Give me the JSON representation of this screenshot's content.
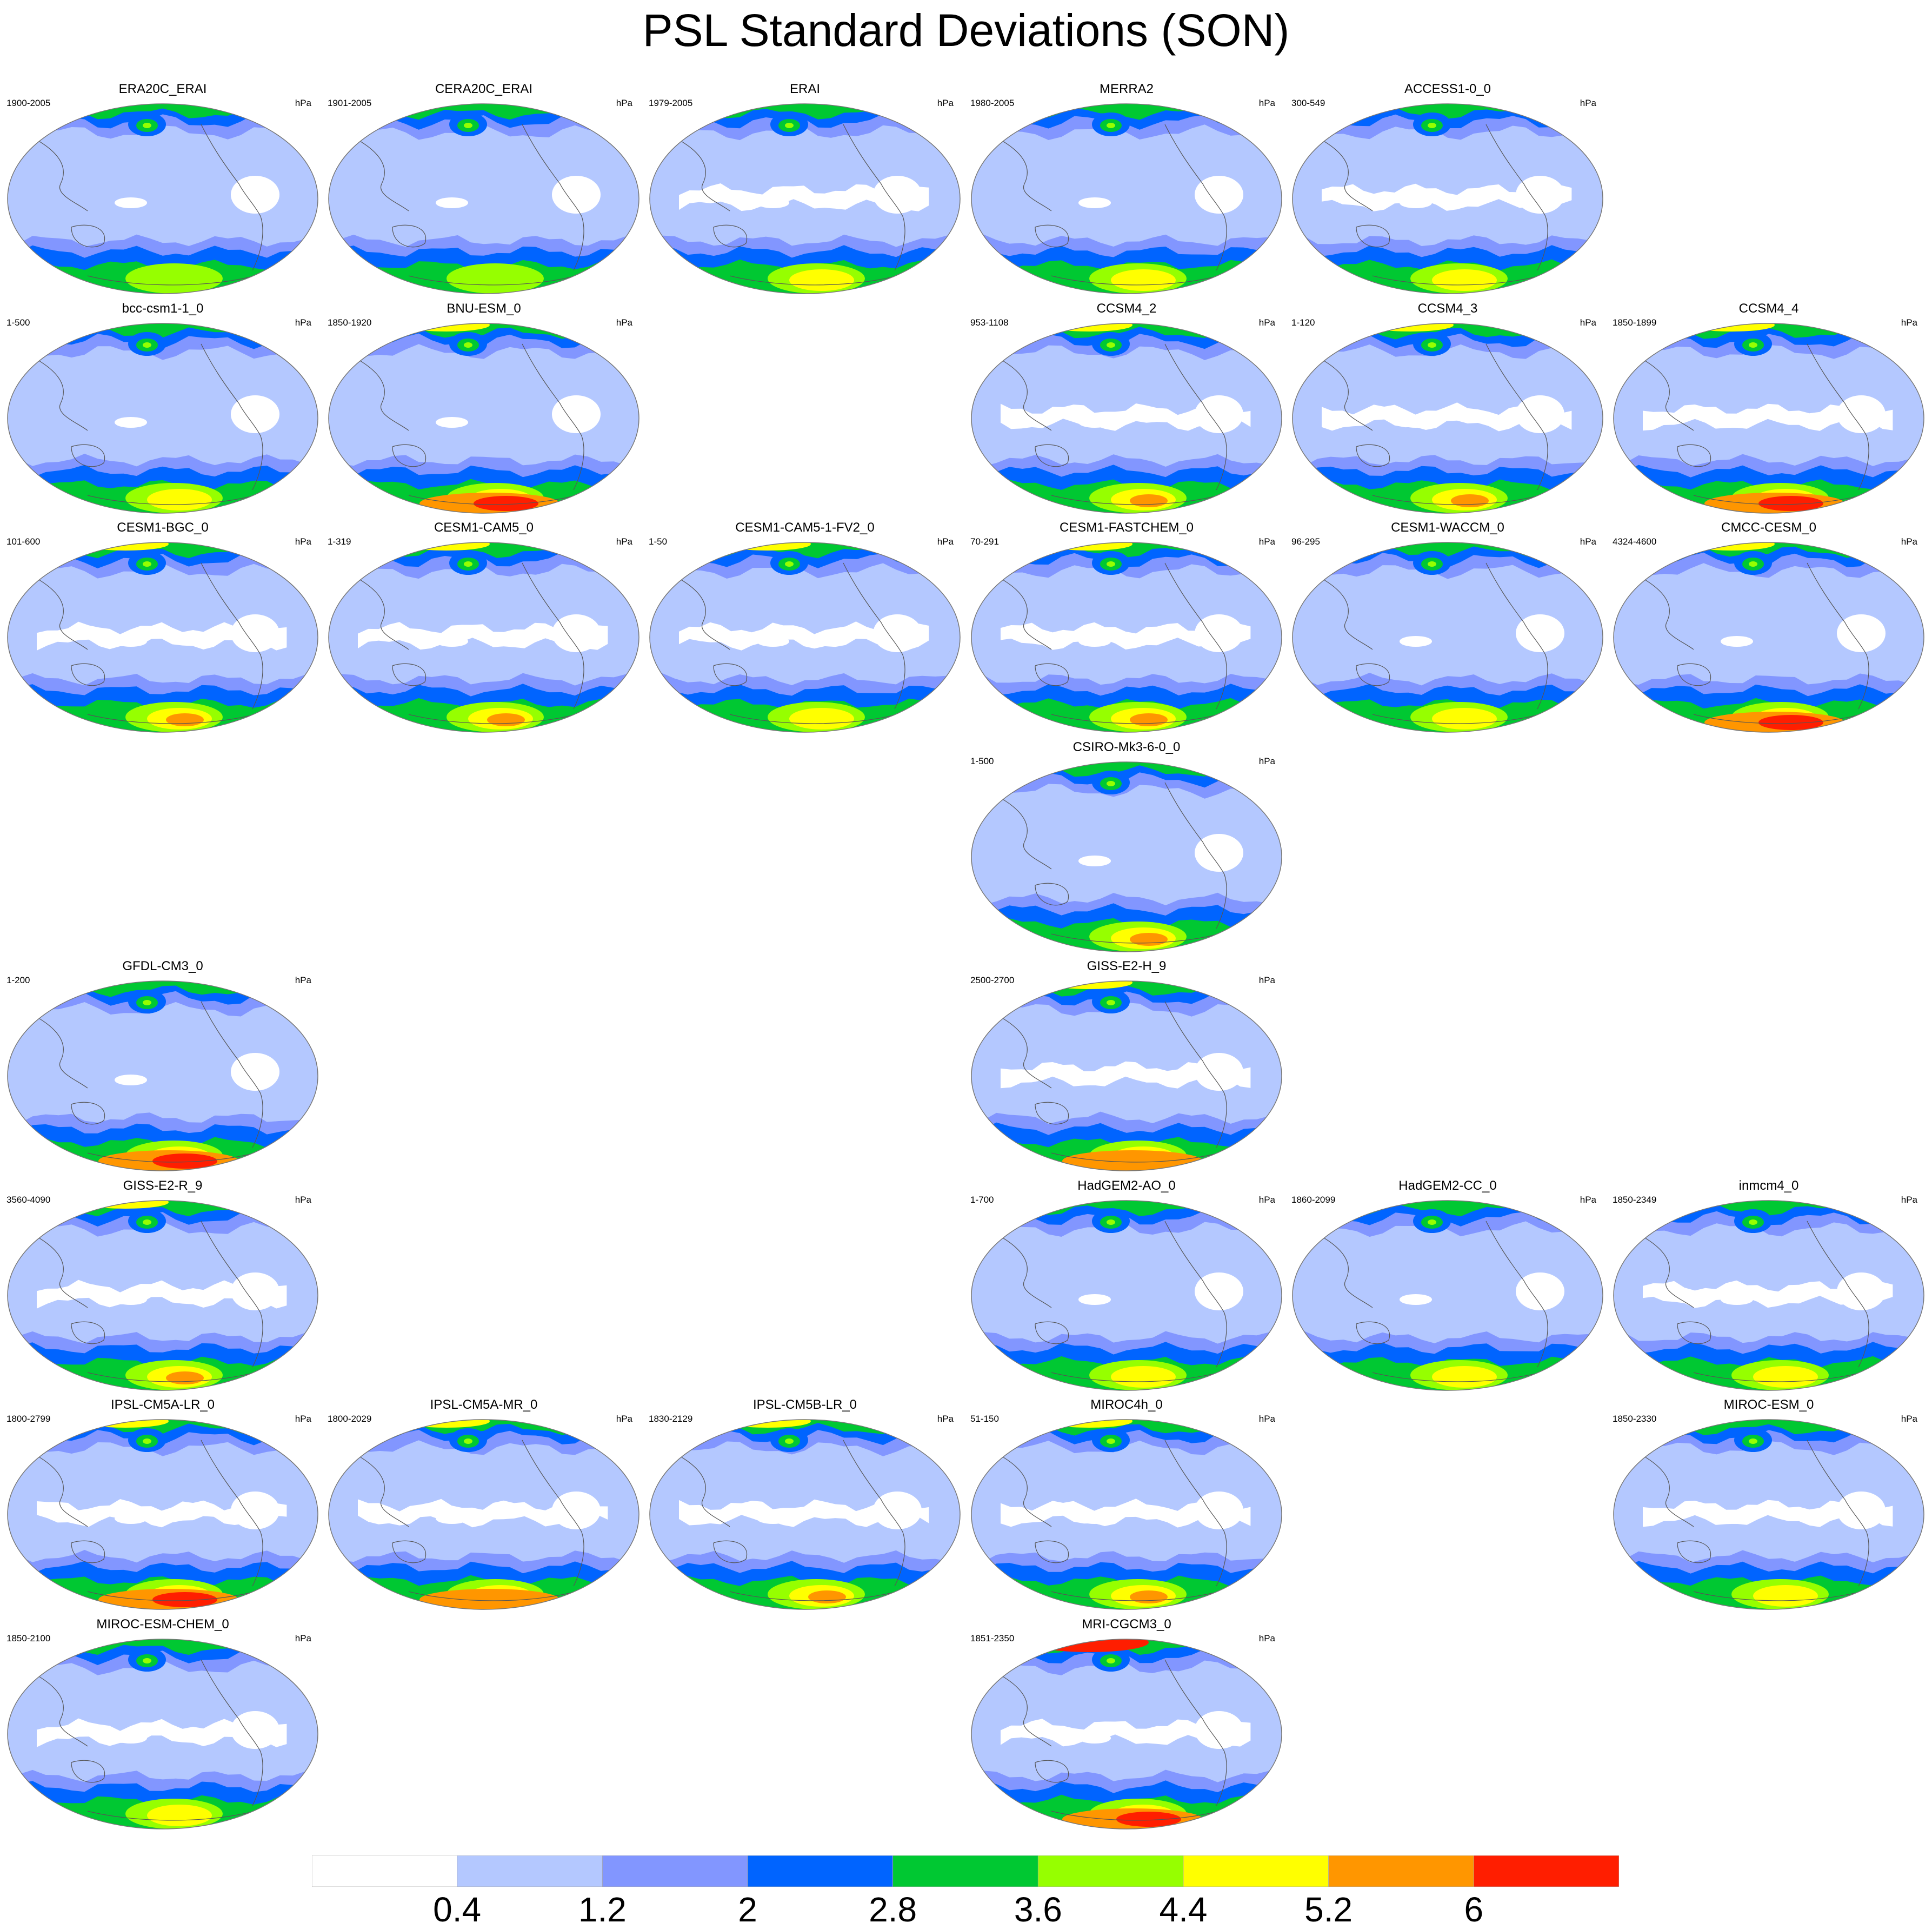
{
  "title": "PSL Standard Deviations (SON)",
  "colorbar": {
    "tick_labels": [
      "0.4",
      "1.2",
      "2",
      "2.8",
      "3.6",
      "4.4",
      "5.2",
      "6"
    ],
    "colors": [
      "#ffffff",
      "#b4c8ff",
      "#8296ff",
      "#0064ff",
      "#00c832",
      "#96ff00",
      "#ffff00",
      "#ff9600",
      "#ff1e00"
    ]
  },
  "panels": [
    {
      "name": "ERA20C_ERAI",
      "years": "1900-2005",
      "unit": "hPa",
      "row": 0,
      "col": 0,
      "pole": 4,
      "south": 4,
      "white": 1
    },
    {
      "name": "CERA20C_ERAI",
      "years": "1901-2005",
      "unit": "hPa",
      "row": 0,
      "col": 1,
      "pole": 4,
      "south": 4,
      "white": 1
    },
    {
      "name": "ERAI",
      "years": "1979-2005",
      "unit": "hPa",
      "row": 0,
      "col": 2,
      "pole": 4,
      "south": 5,
      "white": 2
    },
    {
      "name": "MERRA2",
      "years": "1980-2005",
      "unit": "hPa",
      "row": 0,
      "col": 3,
      "pole": 4,
      "south": 5,
      "white": 1
    },
    {
      "name": "ACCESS1-0_0",
      "years": "300-549",
      "unit": "hPa",
      "row": 0,
      "col": 4,
      "pole": 4,
      "south": 5,
      "white": 2
    },
    {
      "name": "bcc-csm1-1_0",
      "years": "1-500",
      "unit": "hPa",
      "row": 1,
      "col": 0,
      "pole": 4,
      "south": 5,
      "white": 1
    },
    {
      "name": "BNU-ESM_0",
      "years": "1850-1920",
      "unit": "hPa",
      "row": 1,
      "col": 1,
      "pole": 5,
      "south": 8,
      "white": 1
    },
    {
      "name": "CCSM4_2",
      "years": "953-1108",
      "unit": "hPa",
      "row": 1,
      "col": 3,
      "pole": 5,
      "south": 6,
      "white": 2
    },
    {
      "name": "CCSM4_3",
      "years": "1-120",
      "unit": "hPa",
      "row": 1,
      "col": 4,
      "pole": 5,
      "south": 6,
      "white": 2
    },
    {
      "name": "CCSM4_4",
      "years": "1850-1899",
      "unit": "hPa",
      "row": 1,
      "col": 5,
      "pole": 5,
      "south": 8,
      "white": 2
    },
    {
      "name": "CESM1-BGC_0",
      "years": "101-600",
      "unit": "hPa",
      "row": 2,
      "col": 0,
      "pole": 5,
      "south": 6,
      "white": 2
    },
    {
      "name": "CESM1-CAM5_0",
      "years": "1-319",
      "unit": "hPa",
      "row": 2,
      "col": 1,
      "pole": 5,
      "south": 6,
      "white": 2
    },
    {
      "name": "CESM1-CAM5-1-FV2_0",
      "years": "1-50",
      "unit": "hPa",
      "row": 2,
      "col": 2,
      "pole": 5,
      "south": 5,
      "white": 2
    },
    {
      "name": "CESM1-FASTCHEM_0",
      "years": "70-291",
      "unit": "hPa",
      "row": 2,
      "col": 3,
      "pole": 5,
      "south": 6,
      "white": 2
    },
    {
      "name": "CESM1-WACCM_0",
      "years": "96-295",
      "unit": "hPa",
      "row": 2,
      "col": 4,
      "pole": 4,
      "south": 5,
      "white": 1
    },
    {
      "name": "CMCC-CESM_0",
      "years": "4324-4600",
      "unit": "hPa",
      "row": 2,
      "col": 5,
      "pole": 5,
      "south": 8,
      "white": 1
    },
    {
      "name": "CSIRO-Mk3-6-0_0",
      "years": "1-500",
      "unit": "hPa",
      "row": 3,
      "col": 3,
      "pole": 4,
      "south": 6,
      "white": 1
    },
    {
      "name": "GFDL-CM3_0",
      "years": "1-200",
      "unit": "hPa",
      "row": 4,
      "col": 0,
      "pole": 4,
      "south": 8,
      "white": 1
    },
    {
      "name": "GISS-E2-H_9",
      "years": "2500-2700",
      "unit": "hPa",
      "row": 4,
      "col": 3,
      "pole": 5,
      "south": 7,
      "white": 2
    },
    {
      "name": "GISS-E2-R_9",
      "years": "3560-4090",
      "unit": "hPa",
      "row": 5,
      "col": 0,
      "pole": 5,
      "south": 6,
      "white": 2
    },
    {
      "name": "HadGEM2-AO_0",
      "years": "1-700",
      "unit": "hPa",
      "row": 5,
      "col": 3,
      "pole": 4,
      "south": 5,
      "white": 1
    },
    {
      "name": "HadGEM2-CC_0",
      "years": "1860-2099",
      "unit": "hPa",
      "row": 5,
      "col": 4,
      "pole": 4,
      "south": 5,
      "white": 1
    },
    {
      "name": "inmcm4_0",
      "years": "1850-2349",
      "unit": "hPa",
      "row": 5,
      "col": 5,
      "pole": 4,
      "south": 5,
      "white": 2
    },
    {
      "name": "IPSL-CM5A-LR_0",
      "years": "1800-2799",
      "unit": "hPa",
      "row": 6,
      "col": 0,
      "pole": 5,
      "south": 8,
      "white": 2
    },
    {
      "name": "IPSL-CM5A-MR_0",
      "years": "1800-2029",
      "unit": "hPa",
      "row": 6,
      "col": 1,
      "pole": 5,
      "south": 7,
      "white": 2
    },
    {
      "name": "IPSL-CM5B-LR_0",
      "years": "1830-2129",
      "unit": "hPa",
      "row": 6,
      "col": 2,
      "pole": 5,
      "south": 6,
      "white": 2
    },
    {
      "name": "MIROC4h_0",
      "years": "51-150",
      "unit": "hPa",
      "row": 6,
      "col": 3,
      "pole": 5,
      "south": 6,
      "white": 2
    },
    {
      "name": "MIROC-ESM_0",
      "years": "1850-2330",
      "unit": "hPa",
      "row": 6,
      "col": 5,
      "pole": 4,
      "south": 5,
      "white": 2
    },
    {
      "name": "MIROC-ESM-CHEM_0",
      "years": "1850-2100",
      "unit": "hPa",
      "row": 7,
      "col": 0,
      "pole": 4,
      "south": 5,
      "white": 2
    },
    {
      "name": "MRI-CGCM3_0",
      "years": "1851-2350",
      "unit": "hPa",
      "row": 7,
      "col": 3,
      "pole": 8,
      "south": 8,
      "white": 2
    }
  ]
}
